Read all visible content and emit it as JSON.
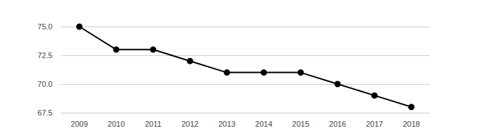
{
  "chart_data": {
    "type": "line",
    "categories": [
      "2009",
      "2010",
      "2011",
      "2012",
      "2013",
      "2014",
      "2015",
      "2016",
      "2017",
      "2018"
    ],
    "values": [
      75,
      73,
      73,
      72,
      71,
      71,
      71,
      70,
      69,
      68
    ],
    "color": "#000000",
    "marker": "circle",
    "ylim": [
      67.5,
      75
    ],
    "yticks": [
      67.5,
      {
        "value": 70,
        "label": "70.0"
      },
      72.5,
      {
        "value": 75,
        "label": "75.0"
      }
    ],
    "grid": true
  }
}
